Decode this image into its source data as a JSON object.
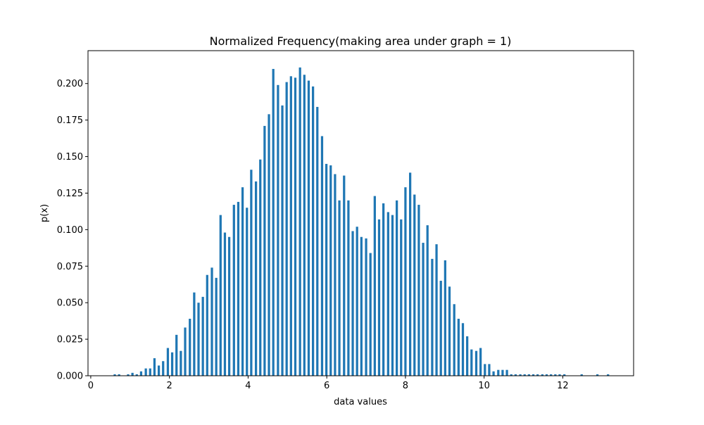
{
  "chart_data": {
    "type": "bar",
    "title": "Normalized Frequency(making area under graph = 1)",
    "xlabel": "data values",
    "ylabel": "p(x)",
    "xlim": [
      -0.07,
      13.8
    ],
    "ylim": [
      0,
      0.2225
    ],
    "xticks": [
      0,
      2,
      4,
      6,
      8,
      10,
      12
    ],
    "xtick_labels": [
      "0",
      "2",
      "4",
      "6",
      "8",
      "10",
      "12"
    ],
    "yticks": [
      0.0,
      0.025,
      0.05,
      0.075,
      0.1,
      0.125,
      0.15,
      0.175,
      0.2
    ],
    "ytick_labels": [
      "0.000",
      "0.025",
      "0.050",
      "0.075",
      "0.100",
      "0.125",
      "0.150",
      "0.175",
      "0.200"
    ],
    "bar_width": 0.058,
    "grid": false,
    "legend": "none",
    "bar_color": "#1f77b4",
    "x": [
      0.61,
      0.72,
      0.95,
      1.06,
      1.17,
      1.28,
      1.4,
      1.51,
      1.62,
      1.73,
      1.84,
      1.96,
      2.07,
      2.18,
      2.29,
      2.4,
      2.52,
      2.63,
      2.74,
      2.85,
      2.96,
      3.08,
      3.19,
      3.3,
      3.41,
      3.52,
      3.64,
      3.75,
      3.86,
      3.97,
      4.08,
      4.2,
      4.31,
      4.42,
      4.53,
      4.64,
      4.76,
      4.87,
      4.98,
      5.09,
      5.2,
      5.32,
      5.43,
      5.54,
      5.65,
      5.76,
      5.88,
      5.99,
      6.1,
      6.21,
      6.32,
      6.44,
      6.55,
      6.66,
      6.77,
      6.88,
      7.0,
      7.11,
      7.22,
      7.33,
      7.44,
      7.56,
      7.67,
      7.78,
      7.89,
      8.0,
      8.12,
      8.23,
      8.34,
      8.45,
      8.56,
      8.68,
      8.79,
      8.9,
      9.01,
      9.12,
      9.24,
      9.35,
      9.46,
      9.57,
      9.68,
      9.8,
      9.91,
      10.02,
      10.13,
      10.24,
      10.36,
      10.47,
      10.58,
      10.69,
      10.8,
      10.92,
      11.03,
      11.14,
      11.25,
      11.36,
      11.48,
      11.59,
      11.7,
      11.81,
      11.92,
      12.04,
      12.48,
      12.88,
      13.15
    ],
    "values": [
      0.001,
      0.001,
      0.001,
      0.002,
      0.001,
      0.003,
      0.005,
      0.005,
      0.012,
      0.007,
      0.01,
      0.019,
      0.016,
      0.028,
      0.017,
      0.033,
      0.039,
      0.057,
      0.05,
      0.054,
      0.069,
      0.074,
      0.067,
      0.11,
      0.098,
      0.095,
      0.117,
      0.119,
      0.129,
      0.115,
      0.141,
      0.133,
      0.148,
      0.171,
      0.179,
      0.21,
      0.199,
      0.185,
      0.201,
      0.205,
      0.204,
      0.211,
      0.206,
      0.202,
      0.198,
      0.184,
      0.164,
      0.145,
      0.144,
      0.138,
      0.12,
      0.137,
      0.12,
      0.099,
      0.102,
      0.095,
      0.094,
      0.084,
      0.123,
      0.107,
      0.118,
      0.112,
      0.11,
      0.12,
      0.107,
      0.129,
      0.139,
      0.124,
      0.117,
      0.091,
      0.103,
      0.08,
      0.09,
      0.065,
      0.079,
      0.061,
      0.049,
      0.039,
      0.036,
      0.027,
      0.018,
      0.017,
      0.019,
      0.008,
      0.008,
      0.003,
      0.004,
      0.004,
      0.004,
      0.001,
      0.001,
      0.001,
      0.001,
      0.001,
      0.001,
      0.001,
      0.001,
      0.001,
      0.001,
      0.001,
      0.001,
      0.001,
      0.001,
      0.001,
      0.001
    ]
  }
}
